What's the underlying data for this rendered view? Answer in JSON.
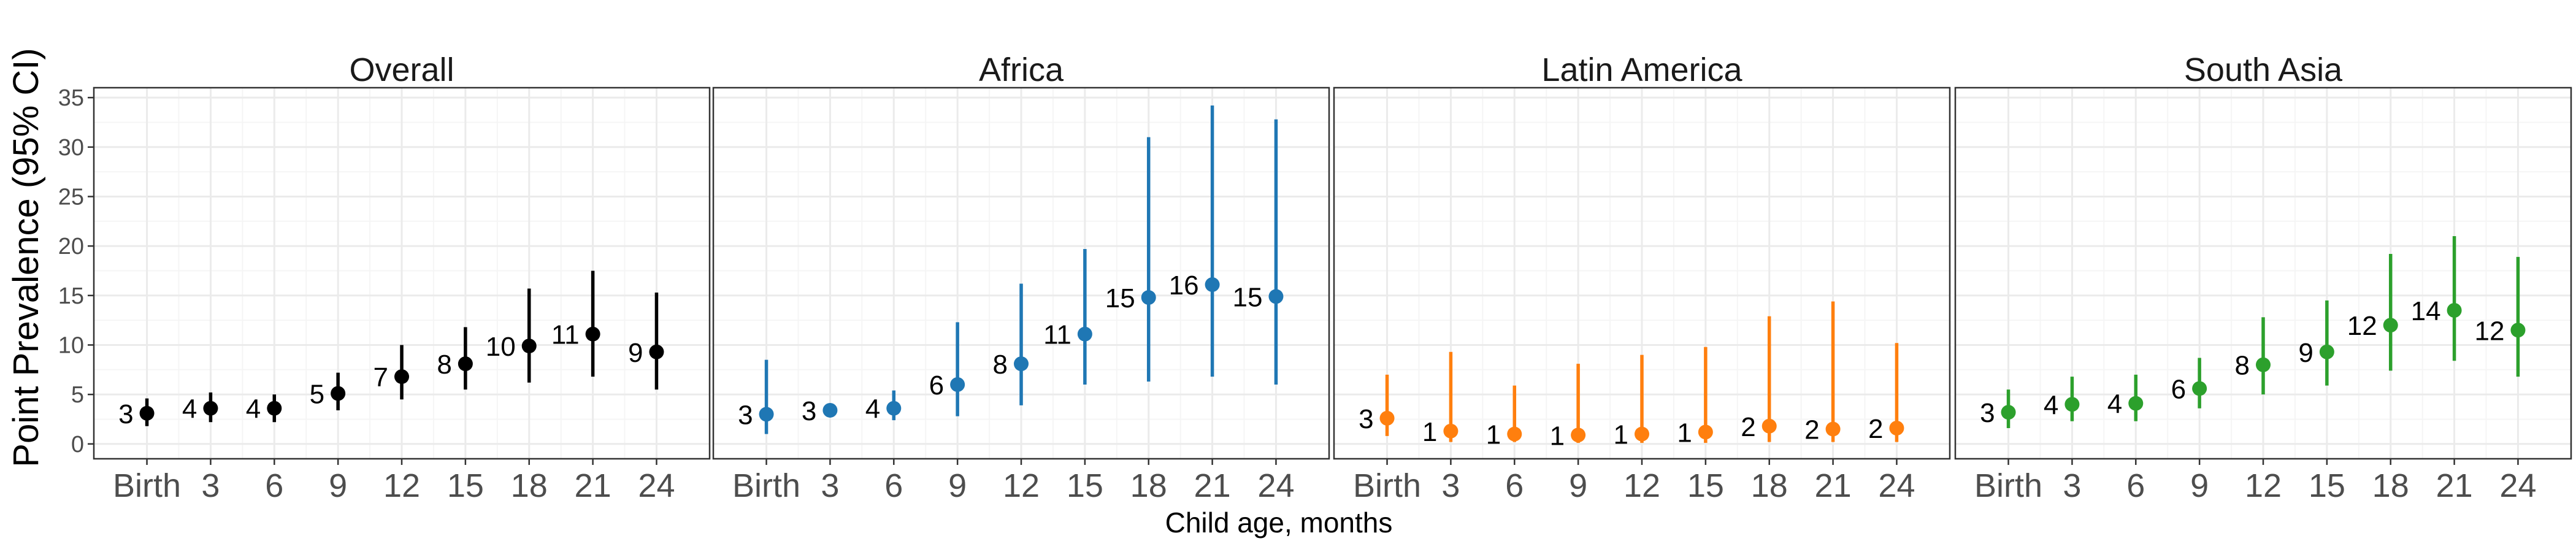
{
  "chart_data": {
    "type": "scatter",
    "ylabel": "Point Prevalence (95% CI)",
    "xlabel": "Child age, months",
    "x_categories": [
      "Birth",
      "3",
      "6",
      "9",
      "12",
      "15",
      "18",
      "21",
      "24"
    ],
    "x_values": [
      0,
      3,
      6,
      9,
      12,
      15,
      18,
      21,
      24
    ],
    "xlim": [
      -2.5,
      26.5
    ],
    "ylim": [
      -1.5,
      36
    ],
    "yticks": [
      0,
      5,
      10,
      15,
      20,
      25,
      30,
      35
    ],
    "grid": true,
    "legend": "none",
    "panels": [
      {
        "title": "Overall",
        "color": "#000000",
        "points": [
          {
            "x": 0,
            "y": 3.1,
            "lo": 1.8,
            "hi": 4.6,
            "label": "3"
          },
          {
            "x": 3,
            "y": 3.6,
            "lo": 2.2,
            "hi": 5.2,
            "label": "4"
          },
          {
            "x": 6,
            "y": 3.6,
            "lo": 2.2,
            "hi": 5.0,
            "label": "4"
          },
          {
            "x": 9,
            "y": 5.1,
            "lo": 3.4,
            "hi": 7.2,
            "label": "5"
          },
          {
            "x": 12,
            "y": 6.8,
            "lo": 4.5,
            "hi": 10.0,
            "label": "7"
          },
          {
            "x": 15,
            "y": 8.1,
            "lo": 5.5,
            "hi": 11.8,
            "label": "8"
          },
          {
            "x": 18,
            "y": 9.9,
            "lo": 6.2,
            "hi": 15.7,
            "label": "10"
          },
          {
            "x": 21,
            "y": 11.1,
            "lo": 6.8,
            "hi": 17.5,
            "label": "11"
          },
          {
            "x": 24,
            "y": 9.3,
            "lo": 5.5,
            "hi": 15.3,
            "label": "9"
          }
        ]
      },
      {
        "title": "Africa",
        "color": "#1f77b4",
        "points": [
          {
            "x": 0,
            "y": 3.0,
            "lo": 1.0,
            "hi": 8.5,
            "label": "3"
          },
          {
            "x": 3,
            "y": 3.4,
            "lo": 3.1,
            "hi": 3.8,
            "label": "3"
          },
          {
            "x": 6,
            "y": 3.6,
            "lo": 2.4,
            "hi": 5.4,
            "label": "4"
          },
          {
            "x": 9,
            "y": 6.0,
            "lo": 2.8,
            "hi": 12.3,
            "label": "6"
          },
          {
            "x": 12,
            "y": 8.1,
            "lo": 3.9,
            "hi": 16.2,
            "label": "8"
          },
          {
            "x": 15,
            "y": 11.1,
            "lo": 6.0,
            "hi": 19.7,
            "label": "11"
          },
          {
            "x": 18,
            "y": 14.8,
            "lo": 6.3,
            "hi": 31.0,
            "label": "15"
          },
          {
            "x": 21,
            "y": 16.1,
            "lo": 6.8,
            "hi": 34.2,
            "label": "16"
          },
          {
            "x": 24,
            "y": 14.9,
            "lo": 6.0,
            "hi": 32.8,
            "label": "15"
          }
        ]
      },
      {
        "title": "Latin America",
        "color": "#ff7f0e",
        "points": [
          {
            "x": 0,
            "y": 2.6,
            "lo": 0.8,
            "hi": 7.0,
            "label": "3"
          },
          {
            "x": 3,
            "y": 1.3,
            "lo": 0.2,
            "hi": 9.3,
            "label": "1"
          },
          {
            "x": 6,
            "y": 1.0,
            "lo": 0.2,
            "hi": 5.9,
            "label": "1"
          },
          {
            "x": 9,
            "y": 0.9,
            "lo": 0.1,
            "hi": 8.1,
            "label": "1"
          },
          {
            "x": 12,
            "y": 1.0,
            "lo": 0.1,
            "hi": 9.0,
            "label": "1"
          },
          {
            "x": 15,
            "y": 1.2,
            "lo": 0.1,
            "hi": 9.8,
            "label": "1"
          },
          {
            "x": 18,
            "y": 1.8,
            "lo": 0.2,
            "hi": 12.9,
            "label": "2"
          },
          {
            "x": 21,
            "y": 1.5,
            "lo": 0.2,
            "hi": 14.4,
            "label": "2"
          },
          {
            "x": 24,
            "y": 1.6,
            "lo": 0.2,
            "hi": 10.2,
            "label": "2"
          }
        ]
      },
      {
        "title": "South Asia",
        "color": "#2ca02c",
        "points": [
          {
            "x": 0,
            "y": 3.2,
            "lo": 1.6,
            "hi": 5.5,
            "label": "3"
          },
          {
            "x": 3,
            "y": 4.0,
            "lo": 2.3,
            "hi": 6.8,
            "label": "4"
          },
          {
            "x": 6,
            "y": 4.1,
            "lo": 2.3,
            "hi": 7.0,
            "label": "4"
          },
          {
            "x": 9,
            "y": 5.6,
            "lo": 3.6,
            "hi": 8.7,
            "label": "6"
          },
          {
            "x": 12,
            "y": 8.0,
            "lo": 5.0,
            "hi": 12.8,
            "label": "8"
          },
          {
            "x": 15,
            "y": 9.3,
            "lo": 5.9,
            "hi": 14.5,
            "label": "9"
          },
          {
            "x": 18,
            "y": 12.0,
            "lo": 7.4,
            "hi": 19.2,
            "label": "12"
          },
          {
            "x": 21,
            "y": 13.5,
            "lo": 8.4,
            "hi": 21.0,
            "label": "14"
          },
          {
            "x": 24,
            "y": 11.5,
            "lo": 6.8,
            "hi": 18.9,
            "label": "12"
          }
        ]
      }
    ]
  }
}
